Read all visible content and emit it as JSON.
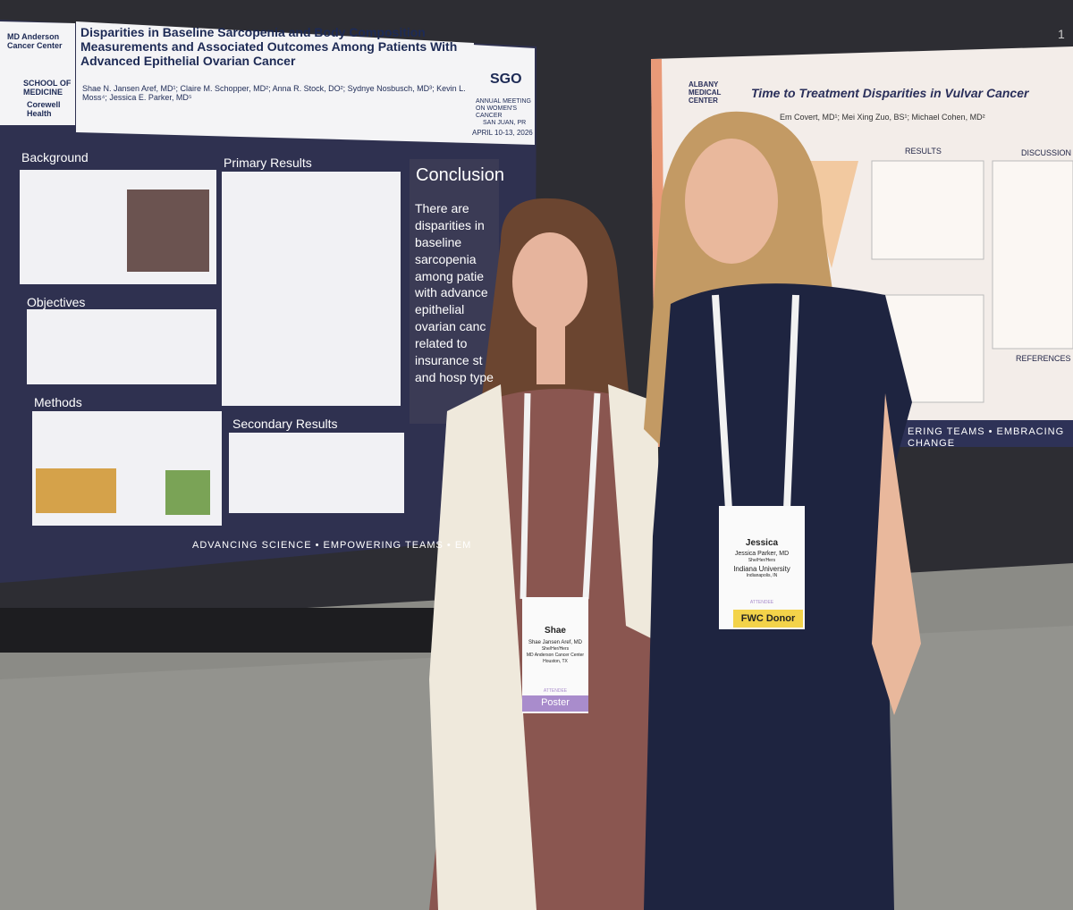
{
  "corner_label": "1",
  "left_poster": {
    "title": "Disparities in Baseline Sarcopenia and Body Composition Measurements and Associated Outcomes Among Patients With Advanced Epithelial Ovarian Cancer",
    "authors": "Shae N. Jansen Aref, MD¹; Claire M. Schopper, MD²; Anna R. Stock, DO²; Sydnye Nosbusch, MD³; Kevin L. Moss⁴; Jessica E. Parker, MD⁵",
    "logos": [
      "MD Anderson Cancer Center",
      "SCHOOL OF MEDICINE",
      "Corewell Health"
    ],
    "sgo": {
      "name": "SGO",
      "meeting": "ANNUAL MEETING ON WOMEN'S CANCER",
      "place": "SAN JUAN, PR",
      "dates": "APRIL 10-13, 2026"
    },
    "sections": {
      "background": "Background",
      "objectives": "Objectives",
      "methods": "Methods",
      "primary_results": "Primary Results",
      "secondary_results": "Secondary Results"
    },
    "conclusion": {
      "heading": "Conclusion",
      "text": "There are disparities in baseline sarcopenia among patie with advance epithelial ovarian canc related to insurance st and hosp type"
    },
    "banner": "ADVANCING SCIENCE • EMPOWERING TEAMS • EM"
  },
  "right_poster": {
    "logo": "ALBANY MEDICAL CENTER",
    "title": "Time to Treatment Disparities in Vulvar Cancer",
    "authors": "Em Covert, MD¹; Mei Xing Zuo, BS¹; Michael Cohen, MD²",
    "sections": {
      "results": "RESULTS",
      "discussion": "DISCUSSION",
      "references": "REFERENCES"
    },
    "banner": "ERING TEAMS • EMBRACING CHANGE"
  },
  "badges": [
    {
      "first_name": "Shae",
      "full_name": "Shae Jansen Aref, MD",
      "pronouns": "She/Her/Hers",
      "org": "MD Anderson Cancer Center",
      "city": "Houston, TX",
      "role": "ATTENDEE",
      "ribbon": "Poster"
    },
    {
      "first_name": "Jessica",
      "full_name": "Jessica Parker, MD",
      "pronouns": "She/Her/Hers",
      "org": "Indiana University",
      "city": "Indianapolis, IN",
      "role": "ATTENDEE",
      "ribbon": "FWC Donor"
    }
  ]
}
